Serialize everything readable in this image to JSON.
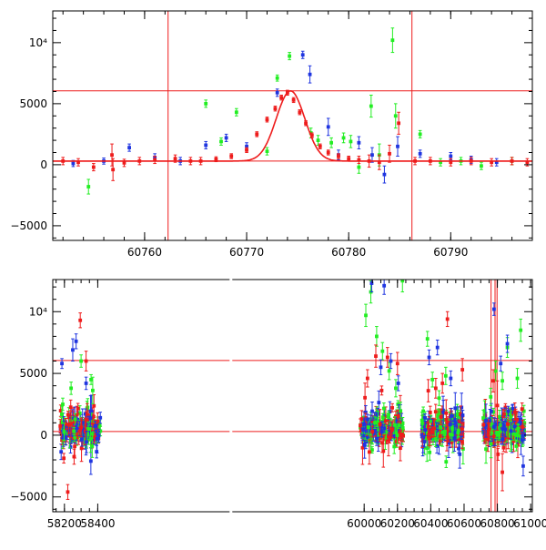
{
  "colors": {
    "green": "#22ee22",
    "blue": "#1f35e0",
    "red": "#ee1c1c",
    "fit": "#ee1c1c",
    "axis": "#000000"
  },
  "chart_data": [
    {
      "type": "scatter",
      "title": "",
      "xlabel": "",
      "ylabel": "",
      "xlim": [
        60751,
        60798
      ],
      "ylim": [
        -6200,
        12600
      ],
      "xticks": [
        60760,
        60770,
        60780,
        60790
      ],
      "xtick_labels": [
        "60760",
        "60770",
        "60780",
        "60790"
      ],
      "yticks": [
        -5000,
        0,
        5000,
        10000
      ],
      "ytick_labels": [
        "−5000",
        "0",
        "5000",
        "10⁴"
      ],
      "hlines": [
        6050,
        300
      ],
      "vlines": [
        60762.3,
        60786.2
      ],
      "model_peak": {
        "t0": 60774.3,
        "amplitude": 5750,
        "baseline": 300,
        "width": 1.4
      },
      "series": [
        {
          "name": "green",
          "color_key": "green",
          "x": [
            60754.5,
            60766.0,
            60767.5,
            60769.0,
            60772.0,
            60773.0,
            60774.2,
            60776.3,
            60777.0,
            60778.3,
            60779.5,
            60780.2,
            60781.0,
            60782.2,
            60783.0,
            60784.3,
            60784.6,
            60787.0,
            60789.0,
            60791.0,
            60793.0,
            60796.0
          ],
          "y": [
            -1800,
            5000,
            1900,
            4300,
            1100,
            7100,
            8900,
            2600,
            2000,
            1800,
            2200,
            1900,
            -200,
            4800,
            800,
            10200,
            4000,
            2500,
            200,
            300,
            -100,
            300
          ],
          "err": [
            600,
            300,
            300,
            300,
            300,
            250,
            300,
            400,
            400,
            400,
            400,
            500,
            500,
            900,
            900,
            1000,
            1000,
            300,
            300,
            300,
            300,
            300
          ]
        },
        {
          "name": "blue",
          "color_key": "blue",
          "x": [
            60753.0,
            60756.0,
            60758.5,
            60761.0,
            60763.5,
            60766.0,
            60768.0,
            60770.0,
            60773.0,
            60775.5,
            60776.2,
            60778.0,
            60779.0,
            60781.0,
            60782.3,
            60783.5,
            60784.8,
            60787.0,
            60790.0,
            60792.0,
            60794.5
          ],
          "y": [
            100,
            300,
            1400,
            600,
            300,
            1600,
            2200,
            1500,
            5900,
            9000,
            7400,
            3100,
            800,
            1800,
            800,
            -800,
            1500,
            900,
            700,
            400,
            200
          ],
          "err": [
            250,
            250,
            300,
            300,
            300,
            300,
            300,
            300,
            300,
            300,
            700,
            700,
            400,
            500,
            600,
            700,
            800,
            300,
            300,
            300,
            300
          ]
        },
        {
          "name": "red",
          "color_key": "red",
          "x": [
            60752.0,
            60753.5,
            60755.0,
            60756.8,
            60756.9,
            60758.0,
            60759.5,
            60761.0,
            60763.0,
            60764.5,
            60765.5,
            60767.0,
            60768.5,
            60770.0,
            60771.0,
            60772.0,
            60772.8,
            60773.4,
            60774.0,
            60774.6,
            60775.2,
            60775.8,
            60776.4,
            60777.2,
            60778.0,
            60779.0,
            60780.0,
            60781.0,
            60782.0,
            60783.0,
            60784.0,
            60784.9,
            60786.5,
            60788.0,
            60790.0,
            60792.0,
            60794.0,
            60796.0,
            60797.5
          ],
          "y": [
            300,
            200,
            -200,
            800,
            -400,
            150,
            300,
            400,
            500,
            300,
            300,
            450,
            700,
            1200,
            2500,
            3700,
            4600,
            5500,
            5900,
            5300,
            4300,
            3400,
            2400,
            1500,
            1000,
            700,
            500,
            400,
            300,
            200,
            900,
            3400,
            300,
            300,
            200,
            300,
            200,
            300,
            200
          ],
          "err": [
            300,
            300,
            300,
            900,
            900,
            300,
            300,
            300,
            300,
            300,
            300,
            200,
            200,
            200,
            200,
            200,
            200,
            200,
            200,
            200,
            200,
            200,
            200,
            200,
            200,
            200,
            200,
            300,
            500,
            600,
            700,
            900,
            300,
            300,
            300,
            300,
            300,
            300,
            300
          ]
        }
      ]
    },
    {
      "type": "scatter",
      "title": "",
      "xlabel": "",
      "ylabel": "",
      "xlim": [
        58130,
        61010
      ],
      "ylim": [
        -6200,
        12600
      ],
      "xticks": [
        58200,
        58400,
        60000,
        60200,
        60400,
        60600,
        60800,
        61000
      ],
      "xtick_labels": [
        "58200",
        "58400",
        "60000",
        "60200",
        "60400",
        "60600",
        "60800",
        "61000"
      ],
      "axis_break": {
        "before": 58430,
        "after": 59970
      },
      "yticks": [
        -5000,
        0,
        5000,
        10000
      ],
      "ytick_labels": [
        "−5000",
        "0",
        "5000",
        "10⁴"
      ],
      "hlines": [
        6050,
        300
      ],
      "vlines": [
        60762,
        60786,
        60798
      ],
      "seasons": [
        {
          "start": 58175,
          "end": 58420
        },
        {
          "start": 59975,
          "end": 60235
        },
        {
          "start": 60345,
          "end": 60595
        },
        {
          "start": 60715,
          "end": 60965
        }
      ],
      "series": [
        {
          "name": "green",
          "color_key": "green",
          "x": [
            58190,
            58240,
            58300,
            58360,
            60010,
            60040,
            60075,
            60110,
            60150,
            60190,
            60230,
            60380,
            60410,
            60450,
            60490,
            60760,
            60790,
            60830,
            60860,
            60920,
            60940
          ],
          "y": [
            2500,
            3800,
            6000,
            4500,
            9700,
            11600,
            8000,
            6800,
            5200,
            3800,
            12500,
            7800,
            4500,
            3000,
            4800,
            3100,
            5200,
            4400,
            7100,
            4600,
            8500
          ],
          "err": [
            500,
            500,
            500,
            400,
            900,
            900,
            800,
            700,
            700,
            700,
            900,
            600,
            600,
            600,
            700,
            700,
            800,
            700,
            800,
            800,
            900
          ]
        },
        {
          "name": "blue",
          "color_key": "blue",
          "x": [
            58185,
            58250,
            58270,
            58330,
            60045,
            60100,
            60120,
            60160,
            60205,
            60390,
            60440,
            60520,
            60780,
            60820,
            60860,
            60955
          ],
          "y": [
            5800,
            6900,
            7600,
            4200,
            12300,
            5500,
            12100,
            6000,
            4200,
            6300,
            7100,
            4600,
            10200,
            5800,
            7400,
            -2500
          ],
          "err": [
            400,
            900,
            600,
            500,
            700,
            600,
            700,
            600,
            600,
            600,
            600,
            600,
            500,
            600,
            700,
            800
          ]
        },
        {
          "name": "red",
          "color_key": "red",
          "x": [
            58220,
            58295,
            58330,
            60020,
            60070,
            60140,
            60200,
            60385,
            60430,
            60470,
            60500,
            60590,
            60775,
            60800,
            60830
          ],
          "y": [
            -4600,
            9300,
            6000,
            4600,
            6400,
            6300,
            5800,
            3600,
            3800,
            4200,
            9400,
            5300,
            4400,
            2400,
            -3000
          ],
          "err": [
            600,
            600,
            800,
            700,
            900,
            800,
            900,
            900,
            800,
            800,
            600,
            900,
            900,
            2000,
            1500
          ]
        }
      ]
    }
  ]
}
